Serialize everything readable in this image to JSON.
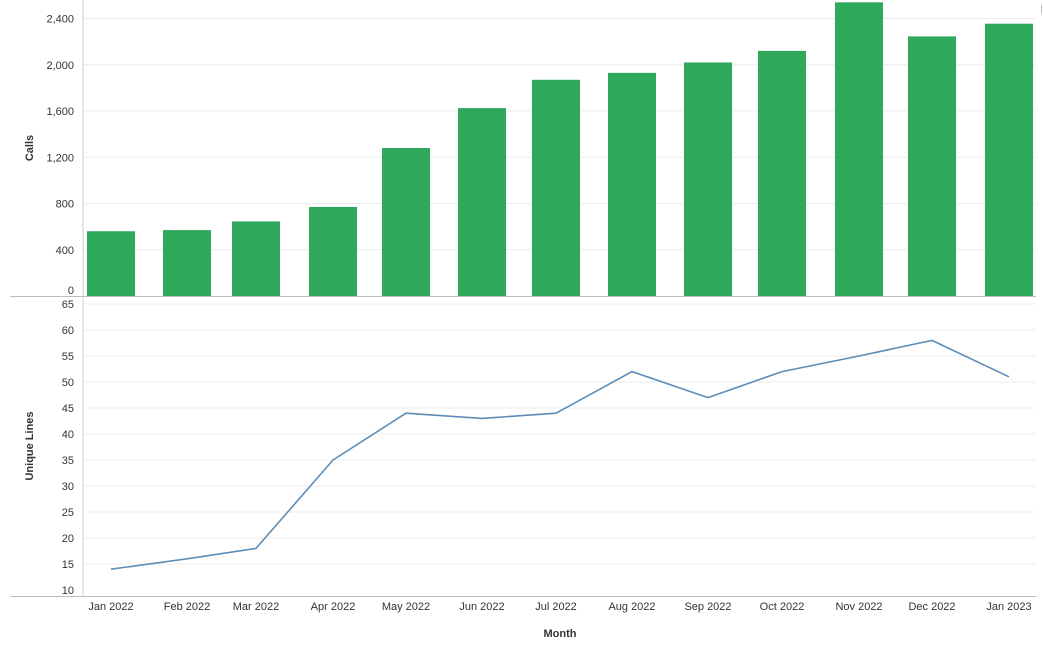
{
  "chart_data": [
    {
      "type": "bar",
      "categories": [
        "Jan 2022",
        "Feb 2022",
        "Mar 2022",
        "Apr 2022",
        "May 2022",
        "Jun 2022",
        "Jul 2022",
        "Aug 2022",
        "Sep 2022",
        "Oct 2022",
        "Nov 2022",
        "Dec 2022",
        "Jan 2023"
      ],
      "values": [
        560,
        570,
        645,
        770,
        1280,
        1625,
        1870,
        1930,
        2020,
        2120,
        2540,
        2245,
        2355
      ],
      "ylabel": "Calls",
      "xlabel": "",
      "ylim": [
        0,
        2560
      ],
      "yticks": [
        0,
        400,
        800,
        1200,
        1600,
        2000,
        2400
      ],
      "ytick_labels": [
        "0",
        "400",
        "800",
        "1,200",
        "1,600",
        "2,000",
        "2,400"
      ],
      "grid": true,
      "color": "#2ea85a"
    },
    {
      "type": "line",
      "categories": [
        "Jan 2022",
        "Feb 2022",
        "Mar 2022",
        "Apr 2022",
        "May 2022",
        "Jun 2022",
        "Jul 2022",
        "Aug 2022",
        "Sep 2022",
        "Oct 2022",
        "Nov 2022",
        "Dec 2022",
        "Jan 2023"
      ],
      "values": [
        14,
        16,
        18,
        35,
        44,
        43,
        44,
        52,
        47,
        52,
        55,
        58,
        51
      ],
      "ylabel": "Unique Lines",
      "xlabel": "Month",
      "ylim": [
        10,
        65
      ],
      "yticks": [
        10,
        15,
        20,
        25,
        30,
        35,
        40,
        45,
        50,
        55,
        60,
        65
      ],
      "ytick_labels": [
        "10",
        "15",
        "20",
        "25",
        "30",
        "35",
        "40",
        "45",
        "50",
        "55",
        "60",
        "65"
      ],
      "grid": true,
      "color": "#5b8db8"
    }
  ]
}
